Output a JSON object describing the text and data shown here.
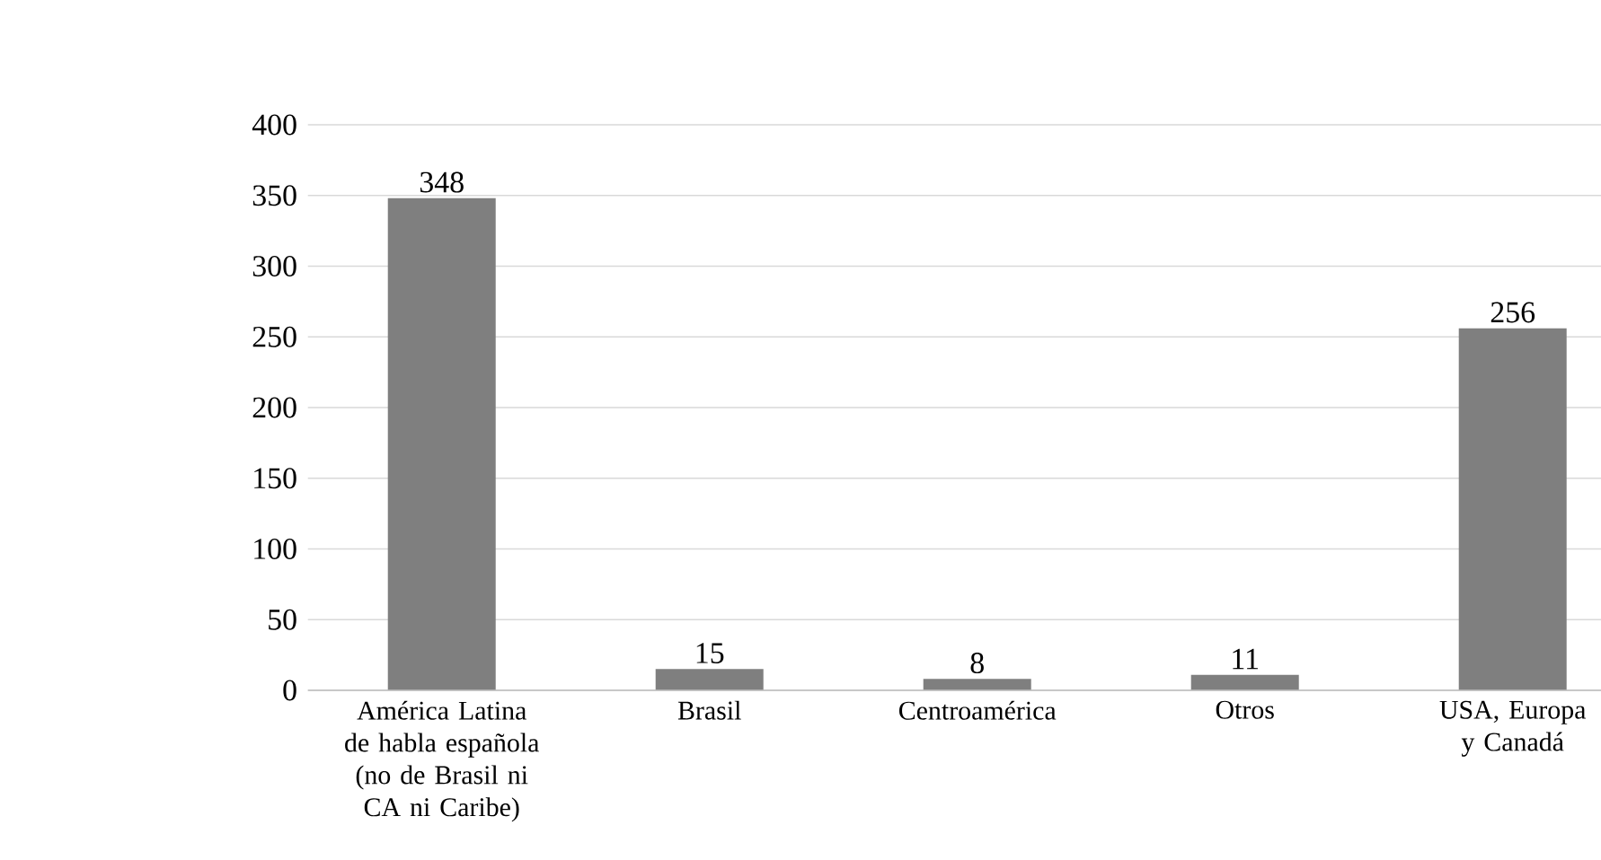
{
  "chart_data": {
    "type": "bar",
    "categories": [
      "América Latina de habla española (no de Brasil ni CA ni Caribe)",
      "Brasil",
      "Centroamérica",
      "Otros",
      "USA, Europa y Canadá"
    ],
    "values": [
      348,
      15,
      8,
      11,
      256
    ],
    "color": "#7f7f7f",
    "ylim": [
      0,
      400
    ],
    "yticks": [
      0,
      50,
      100,
      150,
      200,
      250,
      300,
      350,
      400
    ],
    "grid": "y",
    "data_labels": true
  }
}
